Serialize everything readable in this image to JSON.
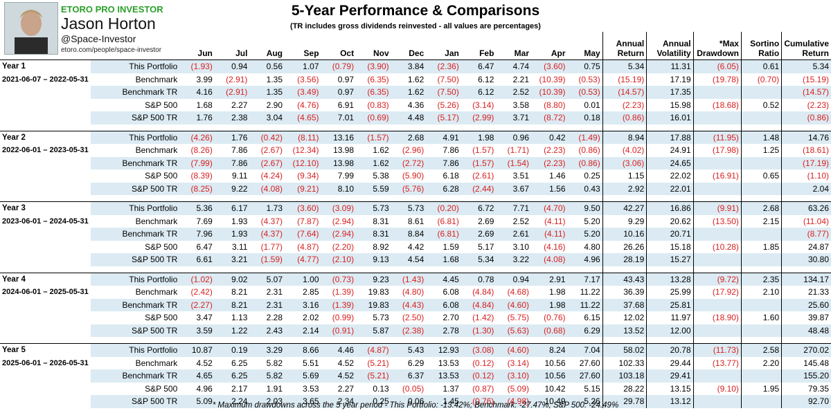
{
  "header": {
    "brand": "ETORO PRO INVESTOR",
    "name": "Jason Horton",
    "handle": "@Space-Investor",
    "url": "etoro.com/people/space-investor",
    "title": "5-Year Performance & Comparisons",
    "subtitle": "(TR includes gross dividends reinvested - all values are percentages)"
  },
  "columns": {
    "months": [
      "Jun",
      "Jul",
      "Aug",
      "Sep",
      "Oct",
      "Nov",
      "Dec",
      "Jan",
      "Feb",
      "Mar",
      "Apr",
      "May"
    ],
    "annual_return": [
      "Annual",
      "Return"
    ],
    "annual_volatility": [
      "Annual",
      "Volatility"
    ],
    "max_drawdown": [
      "*Max",
      "Drawdown"
    ],
    "sortino": [
      "Sortino",
      "Ratio"
    ],
    "cumulative": [
      "Cumulative",
      "Return"
    ]
  },
  "years": [
    {
      "label": "Year 1",
      "range": "2021-06-07 – 2022-05-31",
      "rows": [
        {
          "name": "This Portfolio",
          "m": [
            "(1.93)",
            "0.94",
            "0.56",
            "1.07",
            "(0.79)",
            "(3.90)",
            "3.84",
            "(2.36)",
            "6.47",
            "4.74",
            "(3.60)",
            "0.75"
          ],
          "ret": "5.34",
          "vol": "11.31",
          "dd": "(6.05)",
          "sort": "0.61",
          "cum": "5.34"
        },
        {
          "name": "Benchmark",
          "m": [
            "3.99",
            "(2.91)",
            "1.35",
            "(3.56)",
            "0.97",
            "(6.35)",
            "1.62",
            "(7.50)",
            "6.12",
            "2.21",
            "(10.39)",
            "(0.53)"
          ],
          "ret": "(15.19)",
          "vol": "17.19",
          "dd": "(19.78)",
          "sort": "(0.70)",
          "cum": "(15.19)"
        },
        {
          "name": "Benchmark TR",
          "m": [
            "4.16",
            "(2.91)",
            "1.35",
            "(3.49)",
            "0.97",
            "(6.35)",
            "1.62",
            "(7.50)",
            "6.12",
            "2.52",
            "(10.39)",
            "(0.53)"
          ],
          "ret": "(14.57)",
          "vol": "17.35",
          "dd": "",
          "sort": "",
          "cum": "(14.57)"
        },
        {
          "name": "S&P 500",
          "m": [
            "1.68",
            "2.27",
            "2.90",
            "(4.76)",
            "6.91",
            "(0.83)",
            "4.36",
            "(5.26)",
            "(3.14)",
            "3.58",
            "(8.80)",
            "0.01"
          ],
          "ret": "(2.23)",
          "vol": "15.98",
          "dd": "(18.68)",
          "sort": "0.52",
          "cum": "(2.23)"
        },
        {
          "name": "S&P 500 TR",
          "m": [
            "1.76",
            "2.38",
            "3.04",
            "(4.65)",
            "7.01",
            "(0.69)",
            "4.48",
            "(5.17)",
            "(2.99)",
            "3.71",
            "(8.72)",
            "0.18"
          ],
          "ret": "(0.86)",
          "vol": "16.01",
          "dd": "",
          "sort": "",
          "cum": "(0.86)"
        }
      ]
    },
    {
      "label": "Year 2",
      "range": "2022-06-01 – 2023-05-31",
      "rows": [
        {
          "name": "This Portfolio",
          "m": [
            "(4.26)",
            "1.76",
            "(0.42)",
            "(8.11)",
            "13.16",
            "(1.57)",
            "2.68",
            "4.91",
            "1.98",
            "0.96",
            "0.42",
            "(1.49)"
          ],
          "ret": "8.94",
          "vol": "17.88",
          "dd": "(11.95)",
          "sort": "1.48",
          "cum": "14.76"
        },
        {
          "name": "Benchmark",
          "m": [
            "(8.26)",
            "7.86",
            "(2.67)",
            "(12.34)",
            "13.98",
            "1.62",
            "(2.96)",
            "7.86",
            "(1.57)",
            "(1.71)",
            "(2.23)",
            "(0.86)"
          ],
          "ret": "(4.02)",
          "vol": "24.91",
          "dd": "(17.98)",
          "sort": "1.25",
          "cum": "(18.61)"
        },
        {
          "name": "Benchmark TR",
          "m": [
            "(7.99)",
            "7.86",
            "(2.67)",
            "(12.10)",
            "13.98",
            "1.62",
            "(2.72)",
            "7.86",
            "(1.57)",
            "(1.54)",
            "(2.23)",
            "(0.86)"
          ],
          "ret": "(3.06)",
          "vol": "24.65",
          "dd": "",
          "sort": "",
          "cum": "(17.19)"
        },
        {
          "name": "S&P 500",
          "m": [
            "(8.39)",
            "9.11",
            "(4.24)",
            "(9.34)",
            "7.99",
            "5.38",
            "(5.90)",
            "6.18",
            "(2.61)",
            "3.51",
            "1.46",
            "0.25"
          ],
          "ret": "1.15",
          "vol": "22.02",
          "dd": "(16.91)",
          "sort": "0.65",
          "cum": "(1.10)"
        },
        {
          "name": "S&P 500 TR",
          "m": [
            "(8.25)",
            "9.22",
            "(4.08)",
            "(9.21)",
            "8.10",
            "5.59",
            "(5.76)",
            "6.28",
            "(2.44)",
            "3.67",
            "1.56",
            "0.43"
          ],
          "ret": "2.92",
          "vol": "22.01",
          "dd": "",
          "sort": "",
          "cum": "2.04"
        }
      ]
    },
    {
      "label": "Year 3",
      "range": "2023-06-01 – 2024-05-31",
      "rows": [
        {
          "name": "This Portfolio",
          "m": [
            "5.36",
            "6.17",
            "1.73",
            "(3.60)",
            "(3.09)",
            "5.73",
            "5.73",
            "(0.20)",
            "6.72",
            "7.71",
            "(4.70)",
            "9.50"
          ],
          "ret": "42.27",
          "vol": "16.86",
          "dd": "(9.91)",
          "sort": "2.68",
          "cum": "63.26"
        },
        {
          "name": "Benchmark",
          "m": [
            "7.69",
            "1.93",
            "(4.37)",
            "(7.87)",
            "(2.94)",
            "8.31",
            "8.61",
            "(6.81)",
            "2.69",
            "2.52",
            "(4.11)",
            "5.20"
          ],
          "ret": "9.29",
          "vol": "20.62",
          "dd": "(13.50)",
          "sort": "2.15",
          "cum": "(11.04)"
        },
        {
          "name": "Benchmark TR",
          "m": [
            "7.96",
            "1.93",
            "(4.37)",
            "(7.64)",
            "(2.94)",
            "8.31",
            "8.84",
            "(6.81)",
            "2.69",
            "2.61",
            "(4.11)",
            "5.20"
          ],
          "ret": "10.16",
          "vol": "20.71",
          "dd": "",
          "sort": "",
          "cum": "(8.77)"
        },
        {
          "name": "S&P 500",
          "m": [
            "6.47",
            "3.11",
            "(1.77)",
            "(4.87)",
            "(2.20)",
            "8.92",
            "4.42",
            "1.59",
            "5.17",
            "3.10",
            "(4.16)",
            "4.80"
          ],
          "ret": "26.26",
          "vol": "15.18",
          "dd": "(10.28)",
          "sort": "1.85",
          "cum": "24.87"
        },
        {
          "name": "S&P 500 TR",
          "m": [
            "6.61",
            "3.21",
            "(1.59)",
            "(4.77)",
            "(2.10)",
            "9.13",
            "4.54",
            "1.68",
            "5.34",
            "3.22",
            "(4.08)",
            "4.96"
          ],
          "ret": "28.19",
          "vol": "15.27",
          "dd": "",
          "sort": "",
          "cum": "30.80"
        }
      ]
    },
    {
      "label": "Year 4",
      "range": "2024-06-01 – 2025-05-31",
      "rows": [
        {
          "name": "This Portfolio",
          "m": [
            "(1.02)",
            "9.02",
            "5.07",
            "1.00",
            "(0.73)",
            "9.23",
            "(1.43)",
            "4.45",
            "0.78",
            "0.94",
            "2.91",
            "7.17"
          ],
          "ret": "43.43",
          "vol": "13.28",
          "dd": "(9.72)",
          "sort": "2.35",
          "cum": "134.17"
        },
        {
          "name": "Benchmark",
          "m": [
            "(2.42)",
            "8.21",
            "2.31",
            "2.85",
            "(1.39)",
            "19.83",
            "(4.80)",
            "6.08",
            "(4.84)",
            "(4.68)",
            "1.98",
            "11.22"
          ],
          "ret": "36.39",
          "vol": "25.99",
          "dd": "(17.92)",
          "sort": "2.10",
          "cum": "21.33"
        },
        {
          "name": "Benchmark TR",
          "m": [
            "(2.27)",
            "8.21",
            "2.31",
            "3.16",
            "(1.39)",
            "19.83",
            "(4.43)",
            "6.08",
            "(4.84)",
            "(4.60)",
            "1.98",
            "11.22"
          ],
          "ret": "37.68",
          "vol": "25.81",
          "dd": "",
          "sort": "",
          "cum": "25.60"
        },
        {
          "name": "S&P 500",
          "m": [
            "3.47",
            "1.13",
            "2.28",
            "2.02",
            "(0.99)",
            "5.73",
            "(2.50)",
            "2.70",
            "(1.42)",
            "(5.75)",
            "(0.76)",
            "6.15"
          ],
          "ret": "12.02",
          "vol": "11.97",
          "dd": "(18.90)",
          "sort": "1.60",
          "cum": "39.87"
        },
        {
          "name": "S&P 500 TR",
          "m": [
            "3.59",
            "1.22",
            "2.43",
            "2.14",
            "(0.91)",
            "5.87",
            "(2.38)",
            "2.78",
            "(1.30)",
            "(5.63)",
            "(0.68)",
            "6.29"
          ],
          "ret": "13.52",
          "vol": "12.00",
          "dd": "",
          "sort": "",
          "cum": "48.48"
        }
      ]
    },
    {
      "label": "Year 5",
      "range": "2025-06-01 – 2026-05-31",
      "rows": [
        {
          "name": "This Portfolio",
          "m": [
            "10.87",
            "0.19",
            "3.29",
            "8.66",
            "4.46",
            "(4.87)",
            "5.43",
            "12.93",
            "(3.08)",
            "(4.60)",
            "8.24",
            "7.04"
          ],
          "ret": "58.02",
          "vol": "20.78",
          "dd": "(11.73)",
          "sort": "2.58",
          "cum": "270.02"
        },
        {
          "name": "Benchmark",
          "m": [
            "4.52",
            "6.25",
            "5.82",
            "5.51",
            "4.52",
            "(5.21)",
            "6.29",
            "13.53",
            "(0.12)",
            "(3.14)",
            "10.56",
            "27.60"
          ],
          "ret": "102.33",
          "vol": "29.44",
          "dd": "(13.77)",
          "sort": "2.20",
          "cum": "145.48"
        },
        {
          "name": "Benchmark TR",
          "m": [
            "4.65",
            "6.25",
            "5.82",
            "5.69",
            "4.52",
            "(5.21)",
            "6.37",
            "13.53",
            "(0.12)",
            "(3.10)",
            "10.56",
            "27.60"
          ],
          "ret": "103.18",
          "vol": "29.41",
          "dd": "",
          "sort": "",
          "cum": "155.20"
        },
        {
          "name": "S&P 500",
          "m": [
            "4.96",
            "2.17",
            "1.91",
            "3.53",
            "2.27",
            "0.13",
            "(0.05)",
            "1.37",
            "(0.87)",
            "(5.09)",
            "10.42",
            "5.15"
          ],
          "ret": "28.22",
          "vol": "13.15",
          "dd": "(9.10)",
          "sort": "1.95",
          "cum": "79.35"
        },
        {
          "name": "S&P 500 TR",
          "m": [
            "5.09",
            "2.24",
            "2.03",
            "3.65",
            "2.34",
            "0.25",
            "0.06",
            "1.45",
            "(0.76)",
            "(4.98)",
            "10.49",
            "5.26"
          ],
          "ret": "29.78",
          "vol": "13.12",
          "dd": "",
          "sort": "",
          "cum": "92.70"
        }
      ]
    }
  ],
  "footnote": "* Maximum drawdowns across the 5 year period - This Portfolio: -13.42%; Benchmark: -27.47%; S&P 500: -24.49%",
  "colors": {
    "negative": "#d81f1f",
    "shade": "#dcebf3",
    "brand": "#2aa02a"
  }
}
